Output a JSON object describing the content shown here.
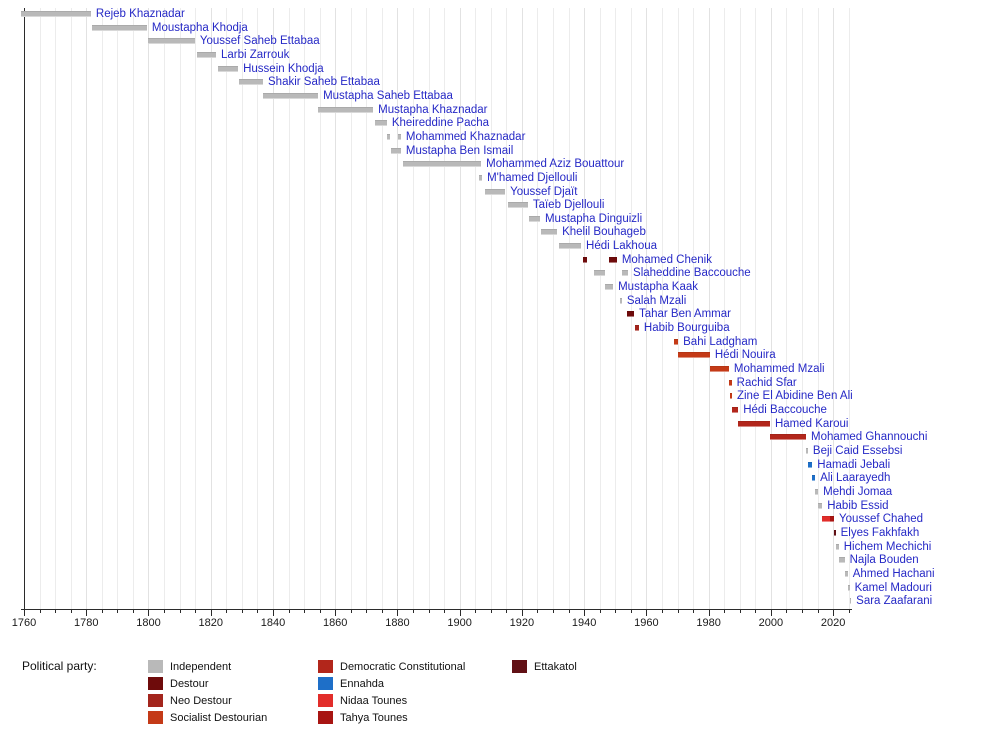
{
  "chart_data": {
    "type": "gantt-timeline",
    "description": "Timeline of heads of government of Tunisia colored by political party",
    "x_axis": {
      "range": [
        1759,
        2026
      ],
      "major_ticks": [
        1760,
        1780,
        1800,
        1820,
        1840,
        1860,
        1880,
        1900,
        1920,
        1940,
        1960,
        1980,
        2000,
        2020
      ],
      "minor_tick_step": 5,
      "grid": true
    },
    "label_color": "#2629c6",
    "parties": {
      "independent": {
        "label": "Independent",
        "color": "#b9b9b9"
      },
      "destour": {
        "label": "Destour",
        "color": "#6e0b0b"
      },
      "neo_destour": {
        "label": "Neo Destour",
        "color": "#a3251d"
      },
      "socialist_destourian": {
        "label": "Socialist Destourian",
        "color": "#c43a17"
      },
      "democratic_constitutional": {
        "label": "Democratic Constitutional",
        "color": "#b2261b"
      },
      "ennahda": {
        "label": "Ennahda",
        "color": "#1e6fc8"
      },
      "nidaa_tounes": {
        "label": "Nidaa Tounes",
        "color": "#e22d2a"
      },
      "tahya_tounes": {
        "label": "Tahya Tounes",
        "color": "#a81512"
      },
      "ettakatol": {
        "label": "Ettakatol",
        "color": "#611015"
      }
    },
    "legend": {
      "title": "Political party:",
      "columns": [
        [
          "independent",
          "destour",
          "neo_destour",
          "socialist_destourian"
        ],
        [
          "democratic_constitutional",
          "ennahda",
          "nidaa_tounes",
          "tahya_tounes"
        ],
        [
          "ettakatol"
        ]
      ]
    },
    "rows": [
      {
        "name": "Rejeb Khaznadar",
        "segments": [
          {
            "start": 1759.0,
            "end": 1781.5,
            "party": "independent"
          }
        ]
      },
      {
        "name": "Moustapha Khodja",
        "segments": [
          {
            "start": 1781.9,
            "end": 1799.5,
            "party": "independent"
          }
        ]
      },
      {
        "name": "Youssef Saheb Ettabaa",
        "segments": [
          {
            "start": 1799.8,
            "end": 1814.9,
            "party": "independent"
          }
        ]
      },
      {
        "name": "Larbi Zarrouk",
        "segments": [
          {
            "start": 1815.6,
            "end": 1821.7,
            "party": "independent"
          }
        ]
      },
      {
        "name": "Hussein Khodja",
        "segments": [
          {
            "start": 1822.3,
            "end": 1828.8,
            "party": "independent"
          }
        ]
      },
      {
        "name": "Shakir Saheb Ettabaa",
        "segments": [
          {
            "start": 1829.1,
            "end": 1836.8,
            "party": "independent"
          }
        ]
      },
      {
        "name": "Mustapha Saheb Ettabaa",
        "segments": [
          {
            "start": 1836.8,
            "end": 1854.5,
            "party": "independent"
          }
        ]
      },
      {
        "name": "Mustapha Khaznadar",
        "segments": [
          {
            "start": 1854.5,
            "end": 1872.2,
            "party": "independent"
          }
        ]
      },
      {
        "name": "Kheireddine Pacha",
        "segments": [
          {
            "start": 1872.8,
            "end": 1876.6,
            "party": "independent"
          }
        ]
      },
      {
        "name": "Mohammed Khaznadar",
        "segments": [
          {
            "start": 1876.6,
            "end": 1877.6,
            "party": "independent"
          },
          {
            "start": 1880.2,
            "end": 1881.1,
            "party": "independent"
          }
        ]
      },
      {
        "name": "Mustapha Ben Ismail",
        "segments": [
          {
            "start": 1877.9,
            "end": 1881.1,
            "party": "independent"
          }
        ]
      },
      {
        "name": "Mohammed Aziz Bouattour",
        "segments": [
          {
            "start": 1881.8,
            "end": 1906.9,
            "party": "independent"
          }
        ]
      },
      {
        "name": "M'hamed Djellouli",
        "segments": [
          {
            "start": 1906.2,
            "end": 1907.2,
            "party": "independent"
          }
        ]
      },
      {
        "name": "Youssef Djaït",
        "segments": [
          {
            "start": 1908.1,
            "end": 1914.6,
            "party": "independent"
          }
        ]
      },
      {
        "name": "Taïeb Djellouli",
        "segments": [
          {
            "start": 1915.5,
            "end": 1921.9,
            "party": "independent"
          }
        ]
      },
      {
        "name": "Mustapha Dinguizli",
        "segments": [
          {
            "start": 1922.3,
            "end": 1925.8,
            "party": "independent"
          }
        ]
      },
      {
        "name": "Khelil Bouhageb",
        "segments": [
          {
            "start": 1926.1,
            "end": 1931.3,
            "party": "independent"
          }
        ]
      },
      {
        "name": "Hédi Lakhoua",
        "segments": [
          {
            "start": 1931.9,
            "end": 1939.0,
            "party": "independent"
          }
        ]
      },
      {
        "name": "Mohamed Chenik",
        "segments": [
          {
            "start": 1939.6,
            "end": 1940.9,
            "party": "destour"
          },
          {
            "start": 1948.0,
            "end": 1950.5,
            "party": "destour"
          }
        ]
      },
      {
        "name": "Slaheddine Baccouche",
        "segments": [
          {
            "start": 1943.2,
            "end": 1946.7,
            "party": "independent"
          },
          {
            "start": 1952.1,
            "end": 1954.1,
            "party": "independent"
          }
        ]
      },
      {
        "name": "Mustapha Kaak",
        "segments": [
          {
            "start": 1946.7,
            "end": 1949.3,
            "party": "independent"
          }
        ]
      },
      {
        "name": "Salah Mzali",
        "segments": [
          {
            "start": 1951.5,
            "end": 1952.1,
            "party": "independent"
          }
        ]
      },
      {
        "name": "Tahar Ben Ammar",
        "segments": [
          {
            "start": 1953.8,
            "end": 1956.0,
            "party": "destour"
          }
        ]
      },
      {
        "name": "Habib Bourguiba",
        "segments": [
          {
            "start": 1956.3,
            "end": 1957.6,
            "party": "neo_destour"
          }
        ]
      },
      {
        "name": "Bahi Ladgham",
        "segments": [
          {
            "start": 1968.9,
            "end": 1970.2,
            "party": "socialist_destourian"
          }
        ]
      },
      {
        "name": "Hédi Nouira",
        "segments": [
          {
            "start": 1970.2,
            "end": 1980.4,
            "party": "socialist_destourian"
          }
        ]
      },
      {
        "name": "Mohammed Mzali",
        "segments": [
          {
            "start": 1980.4,
            "end": 1986.5,
            "party": "socialist_destourian"
          }
        ]
      },
      {
        "name": "Rachid Sfar",
        "segments": [
          {
            "start": 1986.5,
            "end": 1987.4,
            "party": "socialist_destourian"
          }
        ]
      },
      {
        "name": "Zine El Abidine Ben Ali",
        "segments": [
          {
            "start": 1987.0,
            "end": 1987.5,
            "party": "socialist_destourian"
          }
        ]
      },
      {
        "name": "Hédi Baccouche",
        "segments": [
          {
            "start": 1987.5,
            "end": 1989.5,
            "party": "democratic_constitutional"
          }
        ]
      },
      {
        "name": "Hamed Karoui",
        "segments": [
          {
            "start": 1989.5,
            "end": 1999.7,
            "party": "democratic_constitutional"
          }
        ]
      },
      {
        "name": "Mohamed Ghannouchi",
        "segments": [
          {
            "start": 1999.7,
            "end": 2011.3,
            "party": "democratic_constitutional"
          }
        ]
      },
      {
        "name": "Beji Caid Essebsi",
        "segments": [
          {
            "start": 2011.3,
            "end": 2011.9,
            "party": "independent"
          }
        ]
      },
      {
        "name": "Hamadi Jebali",
        "segments": [
          {
            "start": 2011.9,
            "end": 2013.3,
            "party": "ennahda"
          }
        ]
      },
      {
        "name": "Ali Laarayedh",
        "segments": [
          {
            "start": 2013.3,
            "end": 2014.2,
            "party": "ennahda"
          }
        ]
      },
      {
        "name": "Mehdi Jomaa",
        "segments": [
          {
            "start": 2014.2,
            "end": 2015.2,
            "party": "independent"
          }
        ]
      },
      {
        "name": "Habib Essid",
        "segments": [
          {
            "start": 2015.2,
            "end": 2016.5,
            "party": "independent"
          }
        ]
      },
      {
        "name": "Youssef Chahed",
        "segments": [
          {
            "start": 2016.5,
            "end": 2019.0,
            "party": "nidaa_tounes"
          },
          {
            "start": 2019.0,
            "end": 2020.3,
            "party": "tahya_tounes"
          }
        ]
      },
      {
        "name": "Elyes Fakhfakh",
        "segments": [
          {
            "start": 2020.3,
            "end": 2020.8,
            "party": "ettakatol"
          }
        ]
      },
      {
        "name": "Hichem Mechichi",
        "segments": [
          {
            "start": 2020.8,
            "end": 2021.8,
            "party": "independent"
          }
        ]
      },
      {
        "name": "Najla Bouden",
        "segments": [
          {
            "start": 2021.8,
            "end": 2023.7,
            "party": "independent"
          }
        ]
      },
      {
        "name": "Ahmed Hachani",
        "segments": [
          {
            "start": 2023.7,
            "end": 2024.7,
            "party": "independent"
          }
        ]
      },
      {
        "name": "Kamel Madouri",
        "segments": [
          {
            "start": 2024.7,
            "end": 2025.3,
            "party": "independent"
          }
        ]
      },
      {
        "name": "Sara Zaafarani",
        "segments": [
          {
            "start": 2025.3,
            "end": 2025.8,
            "party": "independent"
          }
        ]
      }
    ]
  }
}
